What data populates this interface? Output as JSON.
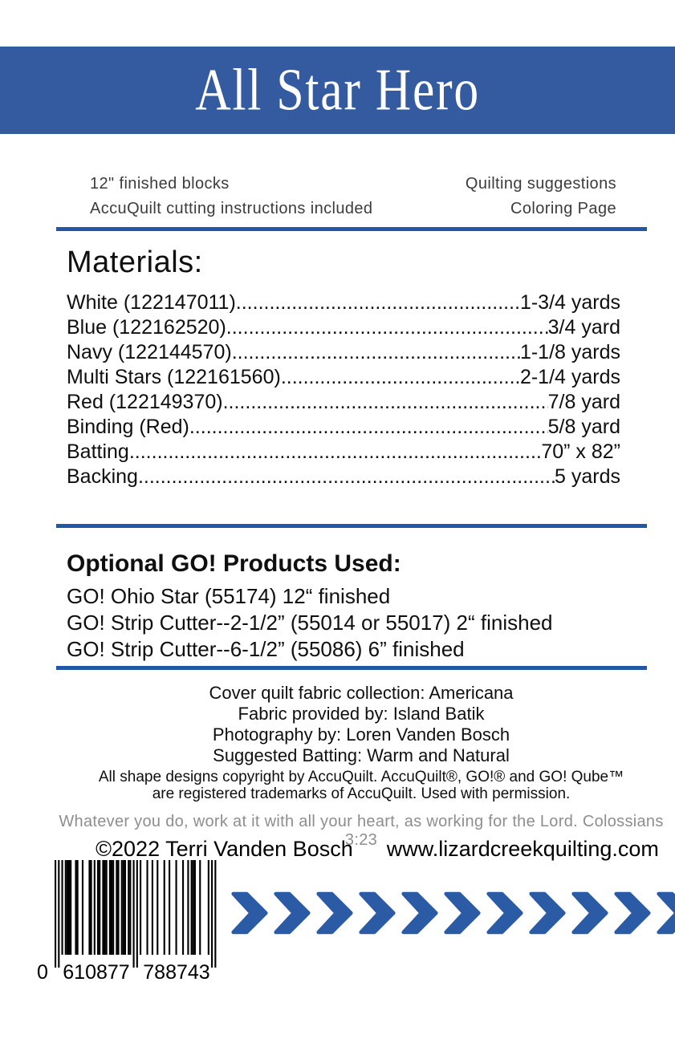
{
  "colors": {
    "band_blue": "#345B9F",
    "rule_blue": "#2257A5",
    "chevron_blue": "#2C5BA5",
    "quote_gray": "#8e8e8e"
  },
  "header": {
    "title": "All Star Hero"
  },
  "info": {
    "left": [
      "12\" finished blocks",
      "AccuQuilt cutting instructions included"
    ],
    "right": [
      "Quilting suggestions",
      "Coloring Page"
    ]
  },
  "materials": {
    "heading": "Materials:",
    "items": [
      {
        "label": "White (122147011)",
        "value": "1-3/4 yards"
      },
      {
        "label": "Blue (122162520)",
        "value": "3/4 yard"
      },
      {
        "label": "Navy (122144570)",
        "value": "1-1/8 yards"
      },
      {
        "label": "Multi Stars (122161560)",
        "value": "2-1/4 yards"
      },
      {
        "label": "Red (122149370)",
        "value": "7/8 yard"
      },
      {
        "label": "Binding (Red)",
        "value": "5/8 yard"
      },
      {
        "label": "Batting",
        "value": "70” x 82”"
      },
      {
        "label": "Backing",
        "value": "5 yards"
      }
    ]
  },
  "go_products": {
    "heading": "Optional GO! Products Used:",
    "items": [
      "GO! Ohio Star (55174) 12“ finished",
      "GO! Strip Cutter--2-1/2” (55014 or 55017) 2“ finished",
      "GO! Strip Cutter--6-1/2” (55086) 6” finished"
    ]
  },
  "credits": {
    "lines": [
      "Cover quilt fabric collection: Americana",
      "Fabric provided by: Island Batik",
      "Photography by: Loren Vanden Bosch",
      "Suggested Batting: Warm and Natural"
    ]
  },
  "trademark": {
    "lines": [
      "All shape designs copyright by AccuQuilt. AccuQuilt®, GO!® and GO! Qube™",
      "are registered trademarks of AccuQuilt. Used with permission."
    ]
  },
  "scripture": "Whatever you do, work at it with all your heart, as working for the Lord. Colossians 3:23",
  "footer": {
    "copyright": "©2022 Terri Vanden Bosch",
    "website": "www.lizardcreekquilting.com"
  },
  "barcode": {
    "number": "0610877788743",
    "display_first": "0",
    "display_left": "610877",
    "display_right": "788743"
  }
}
